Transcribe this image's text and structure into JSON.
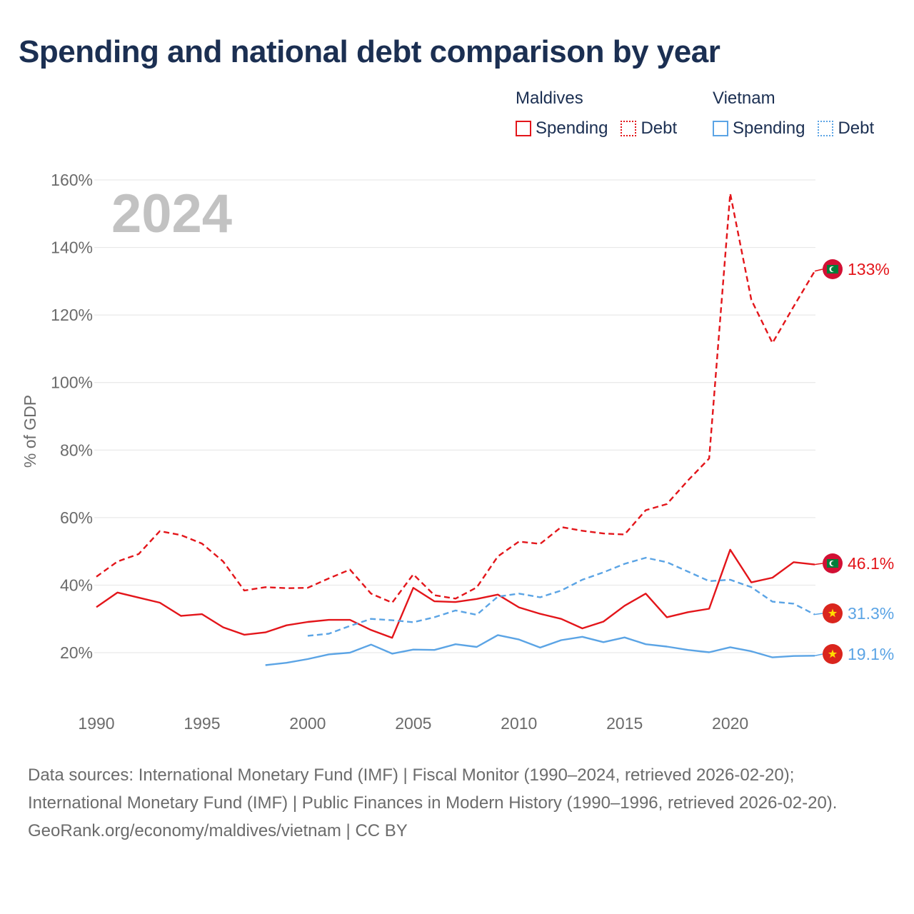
{
  "title": "Spending and national debt comparison by year",
  "legend": {
    "groups": [
      {
        "name": "Maldives",
        "color": "#e3151a",
        "items": [
          {
            "label": "Spending",
            "style": "solid"
          },
          {
            "label": "Debt",
            "style": "dotted"
          }
        ]
      },
      {
        "name": "Vietnam",
        "color": "#5ba4e5",
        "items": [
          {
            "label": "Spending",
            "style": "solid"
          },
          {
            "label": "Debt",
            "style": "dotted"
          }
        ]
      }
    ]
  },
  "chart_data": {
    "type": "line",
    "title": "Spending and national debt comparison by year",
    "xlabel": "",
    "ylabel": "% of GDP",
    "year_watermark": "2024",
    "xlim": [
      1990,
      2024
    ],
    "ylim": [
      13,
      160
    ],
    "x_ticks": [
      1990,
      1995,
      2000,
      2005,
      2010,
      2015,
      2020
    ],
    "y_ticks": [
      {
        "value": 20,
        "label": "20%"
      },
      {
        "value": 40,
        "label": "40%"
      },
      {
        "value": 60,
        "label": "60%"
      },
      {
        "value": 80,
        "label": "80%"
      },
      {
        "value": 100,
        "label": "100%"
      },
      {
        "value": 120,
        "label": "120%"
      },
      {
        "value": 140,
        "label": "140%"
      },
      {
        "value": 160,
        "label": "160%"
      }
    ],
    "grid": true,
    "series": [
      {
        "name": "Maldives Debt",
        "country": "Maldives",
        "measure": "Debt",
        "color": "#e3151a",
        "dash": "dashed",
        "end_label": "133%",
        "flag": "maldives",
        "x": [
          1990,
          1991,
          1992,
          1993,
          1994,
          1995,
          1996,
          1997,
          1998,
          1999,
          2000,
          2001,
          2002,
          2003,
          2004,
          2005,
          2006,
          2007,
          2008,
          2009,
          2010,
          2011,
          2012,
          2013,
          2014,
          2015,
          2016,
          2017,
          2018,
          2019,
          2020,
          2021,
          2022,
          2023,
          2024
        ],
        "values": [
          42.5,
          47,
          49.2,
          56,
          54.8,
          52.3,
          47,
          38.4,
          39.4,
          39.1,
          39.2,
          42,
          44.6,
          37.5,
          34.8,
          43.2,
          37,
          36,
          39.3,
          48.5,
          52.9,
          52.2,
          57.2,
          56.1,
          55.3,
          55,
          62.2,
          64,
          71,
          77.5,
          156,
          124.5,
          111.7,
          122.5,
          133
        ]
      },
      {
        "name": "Maldives Spending",
        "country": "Maldives",
        "measure": "Spending",
        "color": "#e3151a",
        "dash": "solid",
        "end_label": "46.1%",
        "flag": "maldives",
        "x": [
          1990,
          1991,
          1992,
          1993,
          1994,
          1995,
          1996,
          1997,
          1998,
          1999,
          2000,
          2001,
          2002,
          2003,
          2004,
          2005,
          2006,
          2007,
          2008,
          2009,
          2010,
          2011,
          2012,
          2013,
          2014,
          2015,
          2016,
          2017,
          2018,
          2019,
          2020,
          2021,
          2022,
          2023,
          2024
        ],
        "values": [
          33.5,
          37.8,
          36.3,
          34.8,
          30.9,
          31.4,
          27.5,
          25.3,
          26,
          28.1,
          29.1,
          29.7,
          29.7,
          26.7,
          24.4,
          39.2,
          35.2,
          35,
          35.9,
          37.2,
          33.4,
          31.5,
          30,
          27.2,
          29.2,
          33.9,
          37.5,
          30.5,
          32,
          33,
          50.5,
          40.8,
          42.2,
          46.8,
          46.1
        ]
      },
      {
        "name": "Vietnam Debt",
        "country": "Vietnam",
        "measure": "Debt",
        "color": "#5ba4e5",
        "dash": "dashed",
        "end_label": "31.3%",
        "flag": "vietnam",
        "x": [
          2000,
          2001,
          2002,
          2003,
          2004,
          2005,
          2006,
          2007,
          2008,
          2009,
          2010,
          2011,
          2012,
          2013,
          2014,
          2015,
          2016,
          2017,
          2018,
          2019,
          2020,
          2021,
          2022,
          2023,
          2024
        ],
        "values": [
          25,
          25.6,
          27.9,
          30,
          29.6,
          29,
          30.5,
          32.5,
          31.2,
          36.6,
          37.5,
          36.4,
          38.4,
          41.6,
          43.8,
          46.3,
          48.1,
          46.8,
          44,
          41.2,
          41.6,
          39.4,
          35.1,
          34.5,
          31.3
        ]
      },
      {
        "name": "Vietnam Spending",
        "country": "Vietnam",
        "measure": "Spending",
        "color": "#5ba4e5",
        "dash": "solid",
        "end_label": "19.1%",
        "flag": "vietnam",
        "x": [
          1998,
          1999,
          2000,
          2001,
          2002,
          2003,
          2004,
          2005,
          2006,
          2007,
          2008,
          2009,
          2010,
          2011,
          2012,
          2013,
          2014,
          2015,
          2016,
          2017,
          2018,
          2019,
          2020,
          2021,
          2022,
          2023,
          2024
        ],
        "values": [
          16.3,
          17,
          18.1,
          19.5,
          20,
          22.4,
          19.7,
          20.9,
          20.8,
          22.5,
          21.7,
          25.2,
          23.9,
          21.5,
          23.7,
          24.7,
          23.1,
          24.5,
          22.5,
          21.8,
          20.8,
          20.1,
          21.6,
          20.4,
          18.6,
          19,
          19.1
        ]
      }
    ]
  },
  "footer": {
    "sources": "Data sources: International Monetary Fund (IMF) | Fiscal Monitor (1990–2024, retrieved 2026-02-20); International Monetary Fund (IMF) | Public Finances in Modern History (1990–1996, retrieved 2026-02-20).",
    "attribution": "GeoRank.org/economy/maldives/vietnam | CC BY"
  }
}
